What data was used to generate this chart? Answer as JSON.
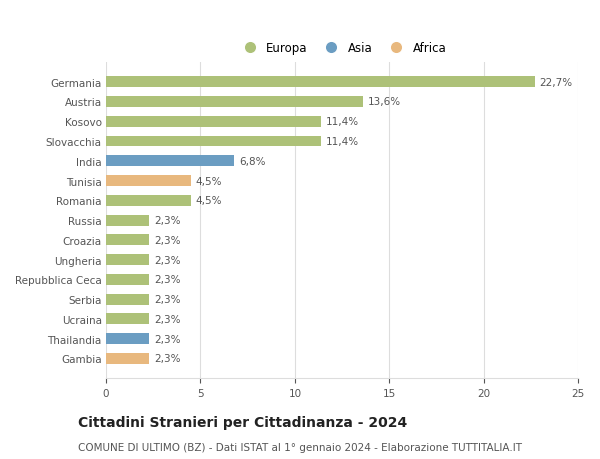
{
  "categories": [
    "Gambia",
    "Thailandia",
    "Ucraina",
    "Serbia",
    "Repubblica Ceca",
    "Ungheria",
    "Croazia",
    "Russia",
    "Romania",
    "Tunisia",
    "India",
    "Slovacchia",
    "Kosovo",
    "Austria",
    "Germania"
  ],
  "values": [
    2.3,
    2.3,
    2.3,
    2.3,
    2.3,
    2.3,
    2.3,
    2.3,
    4.5,
    4.5,
    6.8,
    11.4,
    11.4,
    13.6,
    22.7
  ],
  "continents": [
    "Africa",
    "Asia",
    "Europa",
    "Europa",
    "Europa",
    "Europa",
    "Europa",
    "Europa",
    "Europa",
    "Africa",
    "Asia",
    "Europa",
    "Europa",
    "Europa",
    "Europa"
  ],
  "colors": {
    "Europa": "#adc178",
    "Asia": "#6b9dc2",
    "Africa": "#e8b87e"
  },
  "legend_order": [
    "Europa",
    "Asia",
    "Africa"
  ],
  "labels": [
    "2,3%",
    "2,3%",
    "2,3%",
    "2,3%",
    "2,3%",
    "2,3%",
    "2,3%",
    "2,3%",
    "4,5%",
    "4,5%",
    "6,8%",
    "11,4%",
    "11,4%",
    "13,6%",
    "22,7%"
  ],
  "title": "Cittadini Stranieri per Cittadinanza - 2024",
  "subtitle": "COMUNE DI ULTIMO (BZ) - Dati ISTAT al 1° gennaio 2024 - Elaborazione TUTTITALIA.IT",
  "xlim": [
    0,
    25
  ],
  "xticks": [
    0,
    5,
    10,
    15,
    20,
    25
  ],
  "bar_height": 0.55,
  "background_color": "#ffffff",
  "grid_color": "#dddddd",
  "title_fontsize": 10,
  "subtitle_fontsize": 7.5,
  "label_fontsize": 7.5,
  "tick_fontsize": 7.5,
  "legend_fontsize": 8.5
}
